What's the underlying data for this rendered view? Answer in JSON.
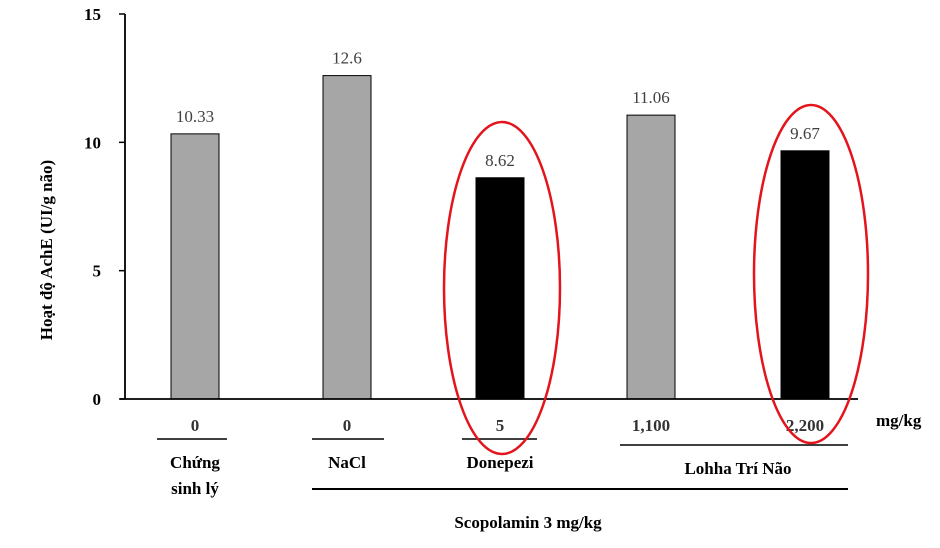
{
  "chart_data": {
    "type": "bar",
    "title": "",
    "ylabel": "Hoạt độ AchE (UI/g não)",
    "ylim": [
      0,
      15
    ],
    "yticks": [
      "0",
      "5",
      "10",
      "15"
    ],
    "unit_label": "mg/kg",
    "bars": [
      {
        "dose": "0",
        "value": 10.33,
        "label": "10.33",
        "color": "#a6a6a6",
        "highlighted": false
      },
      {
        "dose": "0",
        "value": 12.6,
        "label": "12.6",
        "color": "#a6a6a6",
        "highlighted": false
      },
      {
        "dose": "5",
        "value": 8.62,
        "label": "8.62",
        "color": "#000000",
        "highlighted": true
      },
      {
        "dose": "1,100",
        "value": 11.06,
        "label": "11.06",
        "color": "#a6a6a6",
        "highlighted": false
      },
      {
        "dose": "2,200",
        "value": 9.67,
        "label": "9.67",
        "color": "#000000",
        "highlighted": true
      }
    ],
    "groups": {
      "control": [
        "Chứng",
        "sinh lý"
      ],
      "nacl": "NaCl",
      "donepezi": "Donepezi",
      "lohha": "Lohha Trí Não",
      "scopolamin": "Scopolamin 3 mg/kg"
    },
    "highlight_color": "#e3141b"
  }
}
